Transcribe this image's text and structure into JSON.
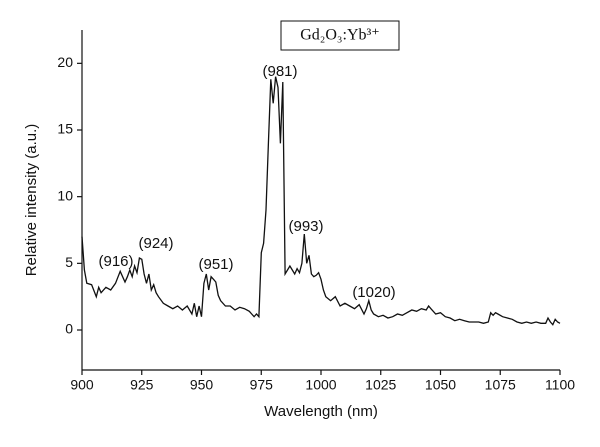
{
  "chart_data": {
    "type": "line",
    "legend_label": "Gd₂O₃:Yb³⁺",
    "x_label": "Wavelength (nm)",
    "y_label": "Relative intensity (a.u.)",
    "annotations": [
      "(916)",
      "(924)",
      "(951)",
      "(981)",
      "(993)",
      "(1020)"
    ],
    "color": "#111111",
    "xlim": [
      900,
      1100
    ],
    "xticks": [
      900,
      925,
      950,
      975,
      1000,
      1025,
      1050,
      1075,
      1100
    ],
    "ylim": [
      -3,
      22.5
    ],
    "yticks": [
      0,
      5,
      10,
      15,
      20
    ],
    "series": [
      {
        "x": [
          900,
          901,
          902,
          904,
          906,
          907,
          908,
          910,
          912,
          914,
          916,
          918,
          919,
          920,
          921,
          922,
          923,
          924,
          925,
          926,
          927,
          928,
          929,
          930,
          931,
          932,
          934,
          936,
          938,
          940,
          942,
          944,
          946,
          947,
          948,
          949,
          950,
          951,
          952,
          953,
          954,
          955,
          956,
          957,
          958,
          960,
          962,
          964,
          966,
          968,
          970,
          971,
          972,
          973,
          974,
          975,
          976,
          977,
          978,
          979,
          980,
          981,
          982,
          983,
          984,
          985,
          986,
          987,
          988,
          989,
          990,
          991,
          992,
          993,
          994,
          995,
          996,
          997,
          998,
          999,
          1000,
          1001,
          1002,
          1004,
          1006,
          1008,
          1010,
          1012,
          1014,
          1016,
          1018,
          1019,
          1020,
          1021,
          1022,
          1024,
          1026,
          1028,
          1030,
          1032,
          1034,
          1036,
          1038,
          1040,
          1042,
          1044,
          1045,
          1046,
          1048,
          1050,
          1052,
          1054,
          1056,
          1058,
          1060,
          1062,
          1064,
          1066,
          1068,
          1070,
          1071,
          1072,
          1073,
          1074,
          1076,
          1078,
          1080,
          1082,
          1084,
          1086,
          1088,
          1090,
          1092,
          1094,
          1095,
          1096,
          1097,
          1098,
          1099,
          1100
        ],
        "values": [
          7.0,
          4.5,
          3.5,
          3.4,
          2.5,
          3.2,
          2.8,
          3.2,
          3.0,
          3.5,
          4.4,
          3.6,
          4.0,
          4.5,
          4.0,
          4.8,
          4.3,
          5.4,
          5.3,
          4.2,
          3.5,
          4.2,
          3.0,
          3.4,
          2.8,
          2.5,
          2.0,
          1.8,
          1.6,
          1.8,
          1.5,
          1.8,
          1.2,
          2.0,
          1.0,
          1.8,
          1.0,
          3.5,
          4.2,
          3.0,
          4.0,
          3.8,
          3.6,
          2.6,
          2.2,
          1.8,
          1.8,
          1.5,
          1.7,
          1.6,
          1.4,
          1.2,
          1.0,
          1.2,
          1.0,
          5.8,
          6.5,
          9.0,
          14.0,
          18.8,
          17.0,
          19.0,
          18.2,
          14.0,
          18.6,
          4.2,
          4.5,
          4.8,
          4.5,
          4.2,
          4.6,
          4.3,
          5.0,
          7.2,
          5.0,
          5.6,
          4.2,
          4.0,
          4.1,
          4.3,
          3.8,
          3.0,
          2.5,
          2.2,
          2.5,
          1.8,
          2.0,
          1.8,
          1.6,
          1.9,
          1.2,
          1.6,
          2.2,
          1.5,
          1.2,
          1.0,
          1.1,
          0.9,
          1.0,
          1.2,
          1.1,
          1.3,
          1.5,
          1.4,
          1.6,
          1.5,
          1.8,
          1.6,
          1.2,
          1.3,
          1.0,
          0.9,
          0.7,
          0.8,
          0.7,
          0.6,
          0.6,
          0.6,
          0.5,
          0.6,
          1.3,
          1.1,
          1.3,
          1.2,
          1.0,
          0.9,
          0.8,
          0.6,
          0.5,
          0.6,
          0.5,
          0.6,
          0.5,
          0.5,
          0.9,
          0.6,
          0.4,
          0.8,
          0.6,
          0.5
        ]
      }
    ]
  }
}
